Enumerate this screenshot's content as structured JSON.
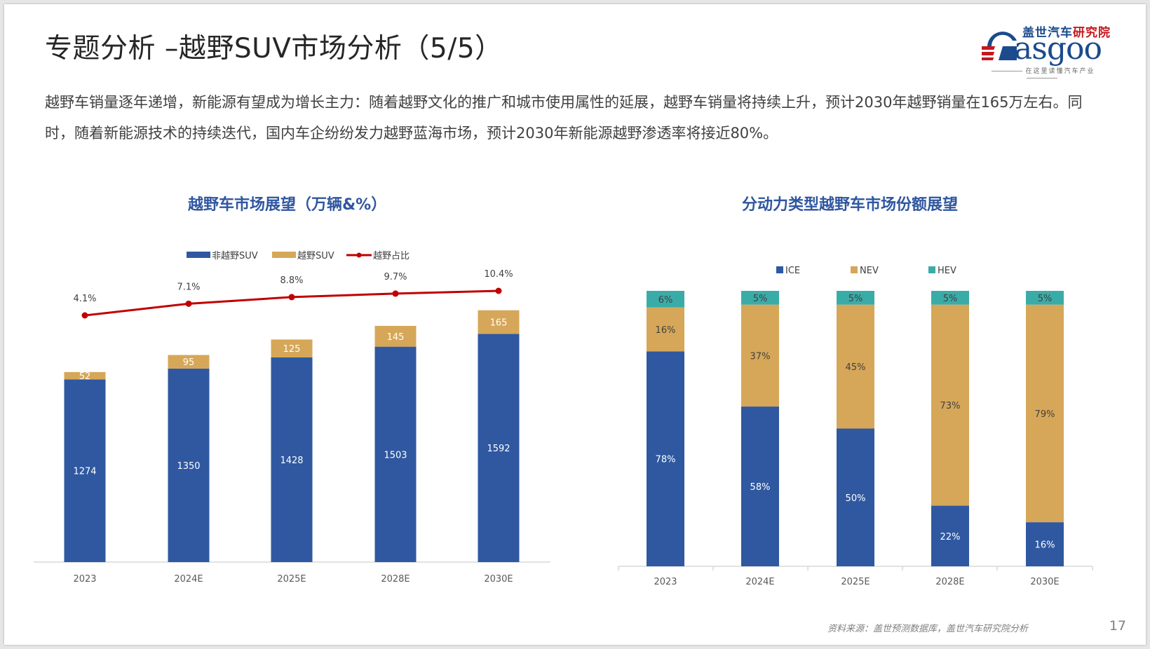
{
  "header": {
    "title": "专题分析 –越野SUV市场分析（5/5）",
    "paragraph": "越野车销量逐年递增，新能源有望成为增长主力：随着越野文化的推广和城市使用属性的延展，越野车销量将持续上升，预计2030年越野销量在165万左右。同时，随着新能源技术的持续迭代，国内车企纷纷发力越野蓝海市场，预计2030年新能源越野渗透率将接近80%。"
  },
  "logo": {
    "cn_blue": "盖世汽车",
    "cn_red": "研究院",
    "word": "asgoo",
    "tagline": "在这里读懂汽车产业"
  },
  "colors": {
    "blue": "#2f58a0",
    "gold": "#d6a758",
    "red": "#c00000",
    "teal": "#3aaca8",
    "title_blue": "#2f56a0"
  },
  "footer": {
    "source": "资料来源：盖世预测数据库，盖世汽车研究院分析",
    "page_number": "17"
  },
  "chart_data": [
    {
      "type": "bar",
      "stacked": true,
      "title": "越野车市场展望（万辆&%）",
      "categories": [
        "2023",
        "2024E",
        "2025E",
        "2028E",
        "2030E"
      ],
      "series": [
        {
          "name": "非越野SUV",
          "kind": "bar",
          "color": "#2f58a0",
          "values": [
            1274,
            1350,
            1428,
            1503,
            1592
          ]
        },
        {
          "name": "越野SUV",
          "kind": "bar",
          "color": "#d6a758",
          "values": [
            52,
            95,
            125,
            145,
            165
          ]
        },
        {
          "name": "越野占比",
          "kind": "line",
          "color": "#c00000",
          "values": [
            4.1,
            7.1,
            8.8,
            9.7,
            10.4
          ],
          "labels": [
            "4.1%",
            "7.1%",
            "8.8%",
            "9.7%",
            "10.4%"
          ]
        }
      ],
      "legend": "top",
      "grid": false,
      "xlabel": "",
      "ylabel": ""
    },
    {
      "type": "bar",
      "stacked": true,
      "percent": true,
      "title": "分动力类型越野车市场份额展望",
      "categories": [
        "2023",
        "2024E",
        "2025E",
        "2028E",
        "2030E"
      ],
      "series": [
        {
          "name": "ICE",
          "color": "#2f58a0",
          "values": [
            78,
            58,
            50,
            22,
            16
          ]
        },
        {
          "name": "NEV",
          "color": "#d6a758",
          "values": [
            16,
            37,
            45,
            73,
            79
          ]
        },
        {
          "name": "HEV",
          "color": "#3aaca8",
          "values": [
            6,
            5,
            5,
            5,
            5
          ]
        }
      ],
      "legend": "top",
      "grid": false,
      "ylim": [
        0,
        100
      ],
      "xlabel": "",
      "ylabel": ""
    }
  ]
}
